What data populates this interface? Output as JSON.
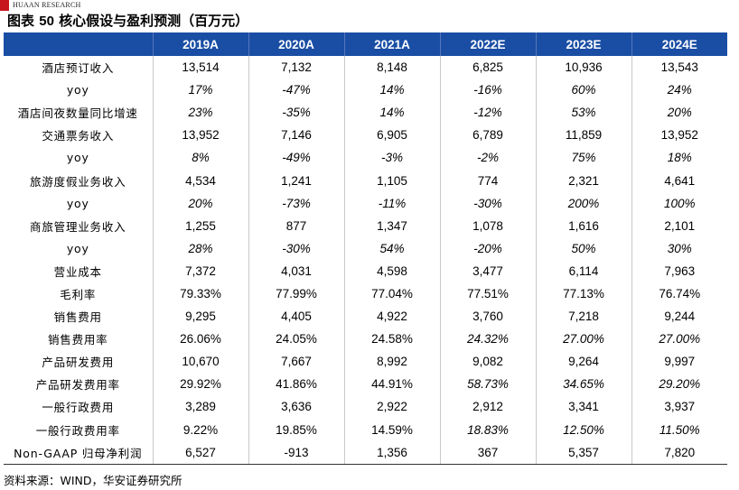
{
  "header": {
    "brand": "HUAAN RESEARCH",
    "title_prefix": "图表 ",
    "title_number": "50",
    "title_text": " 核心假设与盈利预测（百万元）"
  },
  "table": {
    "columns": [
      "2019A",
      "2020A",
      "2021A",
      "2022E",
      "2023E",
      "2024E"
    ],
    "rows": [
      {
        "label": "酒店预订收入",
        "values": [
          "13,514",
          "7,132",
          "8,148",
          "6,825",
          "10,936",
          "13,543"
        ],
        "italic": [
          false,
          false,
          false,
          false,
          false,
          false
        ]
      },
      {
        "label": "yoy",
        "values": [
          "17%",
          "-47%",
          "14%",
          "-16%",
          "60%",
          "24%"
        ],
        "italic": [
          true,
          true,
          true,
          true,
          true,
          true
        ]
      },
      {
        "label": "酒店间夜数量同比增速",
        "values": [
          "23%",
          "-35%",
          "14%",
          "-12%",
          "53%",
          "20%"
        ],
        "italic": [
          true,
          true,
          true,
          true,
          true,
          true
        ]
      },
      {
        "label": "交通票务收入",
        "values": [
          "13,952",
          "7,146",
          "6,905",
          "6,789",
          "11,859",
          "13,952"
        ],
        "italic": [
          false,
          false,
          false,
          false,
          false,
          false
        ]
      },
      {
        "label": "yoy",
        "values": [
          "8%",
          "-49%",
          "-3%",
          "-2%",
          "75%",
          "18%"
        ],
        "italic": [
          true,
          true,
          true,
          true,
          true,
          true
        ]
      },
      {
        "label": "旅游度假业务收入",
        "values": [
          "4,534",
          "1,241",
          "1,105",
          "774",
          "2,321",
          "4,641"
        ],
        "italic": [
          false,
          false,
          false,
          false,
          false,
          false
        ]
      },
      {
        "label": "yoy",
        "values": [
          "20%",
          "-73%",
          "-11%",
          "-30%",
          "200%",
          "100%"
        ],
        "italic": [
          true,
          true,
          true,
          true,
          true,
          true
        ]
      },
      {
        "label": "商旅管理业务收入",
        "values": [
          "1,255",
          "877",
          "1,347",
          "1,078",
          "1,616",
          "2,101"
        ],
        "italic": [
          false,
          false,
          false,
          false,
          false,
          false
        ]
      },
      {
        "label": "yoy",
        "values": [
          "28%",
          "-30%",
          "54%",
          "-20%",
          "50%",
          "30%"
        ],
        "italic": [
          true,
          true,
          true,
          true,
          true,
          true
        ]
      },
      {
        "label": "营业成本",
        "values": [
          "7,372",
          "4,031",
          "4,598",
          "3,477",
          "6,114",
          "7,963"
        ],
        "italic": [
          false,
          false,
          false,
          false,
          false,
          false
        ]
      },
      {
        "label": "毛利率",
        "values": [
          "79.33%",
          "77.99%",
          "77.04%",
          "77.51%",
          "77.13%",
          "76.74%"
        ],
        "italic": [
          false,
          false,
          false,
          false,
          false,
          false
        ]
      },
      {
        "label": "销售费用",
        "values": [
          "9,295",
          "4,405",
          "4,922",
          "3,760",
          "7,218",
          "9,244"
        ],
        "italic": [
          false,
          false,
          false,
          false,
          false,
          false
        ]
      },
      {
        "label": "销售费用率",
        "values": [
          "26.06%",
          "24.05%",
          "24.58%",
          "24.32%",
          "27.00%",
          "27.00%"
        ],
        "italic": [
          false,
          false,
          false,
          true,
          true,
          true
        ]
      },
      {
        "label": "产品研发费用",
        "values": [
          "10,670",
          "7,667",
          "8,992",
          "9,082",
          "9,264",
          "9,997"
        ],
        "italic": [
          false,
          false,
          false,
          false,
          false,
          false
        ]
      },
      {
        "label": "产品研发费用率",
        "values": [
          "29.92%",
          "41.86%",
          "44.91%",
          "58.73%",
          "34.65%",
          "29.20%"
        ],
        "italic": [
          false,
          false,
          false,
          true,
          true,
          true
        ]
      },
      {
        "label": "一般行政费用",
        "values": [
          "3,289",
          "3,636",
          "2,922",
          "2,912",
          "3,341",
          "3,937"
        ],
        "italic": [
          false,
          false,
          false,
          false,
          false,
          false
        ]
      },
      {
        "label": "一般行政费用率",
        "values": [
          "9.22%",
          "19.85%",
          "14.59%",
          "18.83%",
          "12.50%",
          "11.50%"
        ],
        "italic": [
          false,
          false,
          false,
          true,
          true,
          true
        ]
      },
      {
        "label": "Non-GAAP 归母净利润",
        "values": [
          "6,527",
          "-913",
          "1,356",
          "367",
          "5,357",
          "7,820"
        ],
        "italic": [
          false,
          false,
          false,
          false,
          false,
          false
        ]
      }
    ]
  },
  "footer": {
    "source": "资料来源：WIND，华安证券研究所"
  },
  "colors": {
    "header_bg": "#1a4ea4",
    "header_text": "#ffffff",
    "logo": "#c8161d"
  }
}
